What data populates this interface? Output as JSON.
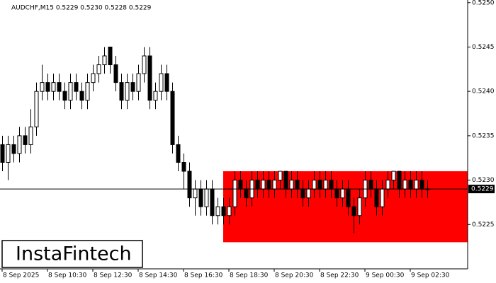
{
  "chart_data": {
    "type": "candlestick",
    "title": "AUDCHF,M15  0.5229 0.5230 0.5228 0.5229",
    "categories": [
      "8 Sep 2025",
      null,
      null,
      null,
      null,
      null,
      null,
      null,
      "8 Sep 10:30",
      null,
      null,
      null,
      null,
      null,
      null,
      null,
      "8 Sep 12:30",
      null,
      null,
      null,
      null,
      null,
      null,
      null,
      "8 Sep 14:30",
      null,
      null,
      null,
      null,
      null,
      null,
      null,
      "8 Sep 16:30",
      null,
      null,
      null,
      null,
      null,
      null,
      null,
      "8 Sep 18:30",
      null,
      null,
      null,
      null,
      null,
      null,
      null,
      "8 Sep 20:30",
      null,
      null,
      null,
      null,
      null,
      null,
      null,
      "8 Sep 22:30",
      null,
      null,
      null,
      null,
      null,
      null,
      null,
      "9 Sep 00:30",
      null,
      null,
      null,
      null,
      null,
      null,
      null,
      "9 Sep 02:30",
      null,
      null,
      null
    ],
    "open": [
      0.5234,
      0.5232,
      0.5234,
      0.5233,
      0.5235,
      0.5234,
      0.5236,
      0.524,
      0.5241,
      0.524,
      0.5241,
      0.524,
      0.5239,
      0.5241,
      0.524,
      0.5239,
      0.5241,
      0.5242,
      0.5243,
      0.5245,
      0.5243,
      0.5241,
      0.5239,
      0.5241,
      0.524,
      0.5242,
      0.5244,
      0.5239,
      0.524,
      0.5242,
      0.524,
      0.5234,
      0.5232,
      0.5231,
      0.5228,
      0.5229,
      0.5227,
      0.5229,
      0.5226,
      0.5227,
      0.5226,
      0.5227,
      0.523,
      0.5229,
      0.5228,
      0.523,
      0.5229,
      0.523,
      0.5229,
      0.523,
      0.5231,
      0.5229,
      0.523,
      0.5229,
      0.5228,
      0.5229,
      0.523,
      0.5229,
      0.523,
      0.5229,
      0.5228,
      0.5229,
      0.5227,
      0.5226,
      0.5228,
      0.523,
      0.5229,
      0.5227,
      0.5229,
      0.523,
      0.5231,
      0.5229,
      0.523,
      0.5229,
      0.523,
      0.5229
    ],
    "high": [
      0.5235,
      0.5235,
      0.5235,
      0.5236,
      0.5236,
      0.5238,
      0.5241,
      0.5243,
      0.5242,
      0.5242,
      0.5242,
      0.5241,
      0.5242,
      0.5242,
      0.5241,
      0.5242,
      0.5243,
      0.5244,
      0.5245,
      0.5245,
      0.5244,
      0.5242,
      0.5242,
      0.5242,
      0.5243,
      0.5245,
      0.5245,
      0.5241,
      0.5243,
      0.5243,
      0.5241,
      0.5235,
      0.5233,
      0.5232,
      0.523,
      0.523,
      0.523,
      0.523,
      0.5228,
      0.5228,
      0.5228,
      0.5231,
      0.5231,
      0.523,
      0.5231,
      0.5231,
      0.5231,
      0.5231,
      0.5231,
      0.5231,
      0.5231,
      0.5231,
      0.5231,
      0.523,
      0.523,
      0.5231,
      0.5231,
      0.5231,
      0.5231,
      0.523,
      0.523,
      0.523,
      0.5228,
      0.5229,
      0.5231,
      0.5231,
      0.523,
      0.523,
      0.5231,
      0.5231,
      0.5231,
      0.5231,
      0.5231,
      0.5231,
      0.5231,
      0.523
    ],
    "low": [
      0.5231,
      0.523,
      0.5232,
      0.5232,
      0.5233,
      0.5233,
      0.5235,
      0.5239,
      0.5239,
      0.5239,
      0.5239,
      0.5238,
      0.5238,
      0.5239,
      0.5238,
      0.5238,
      0.524,
      0.5241,
      0.5242,
      0.5242,
      0.524,
      0.5238,
      0.5238,
      0.5239,
      0.5239,
      0.5241,
      0.5238,
      0.5238,
      0.5239,
      0.5239,
      0.5233,
      0.5231,
      0.5229,
      0.5227,
      0.5226,
      0.5226,
      0.5226,
      0.5225,
      0.5225,
      0.5225,
      0.5225,
      0.5226,
      0.5228,
      0.5227,
      0.5227,
      0.5228,
      0.5228,
      0.5228,
      0.5228,
      0.5229,
      0.5228,
      0.5228,
      0.5228,
      0.5227,
      0.5227,
      0.5228,
      0.5228,
      0.5228,
      0.5228,
      0.5227,
      0.5227,
      0.5226,
      0.5224,
      0.5225,
      0.5227,
      0.5228,
      0.5226,
      0.5226,
      0.5228,
      0.5229,
      0.5228,
      0.5228,
      0.5228,
      0.5228,
      0.5228,
      0.5228
    ],
    "close": [
      0.5232,
      0.5234,
      0.5233,
      0.5235,
      0.5234,
      0.5236,
      0.524,
      0.5241,
      0.524,
      0.5241,
      0.524,
      0.5239,
      0.5241,
      0.524,
      0.5239,
      0.5241,
      0.5242,
      0.5243,
      0.5244,
      0.5243,
      0.5241,
      0.5239,
      0.5241,
      0.524,
      0.5242,
      0.5244,
      0.5239,
      0.524,
      0.5242,
      0.524,
      0.5234,
      0.5232,
      0.5231,
      0.5228,
      0.5229,
      0.5227,
      0.5229,
      0.5226,
      0.5227,
      0.5226,
      0.5227,
      0.523,
      0.5229,
      0.5228,
      0.523,
      0.5229,
      0.523,
      0.5229,
      0.523,
      0.5231,
      0.5229,
      0.523,
      0.5229,
      0.5228,
      0.5229,
      0.523,
      0.5229,
      0.523,
      0.5229,
      0.5228,
      0.5229,
      0.5227,
      0.5226,
      0.5228,
      0.523,
      0.5229,
      0.5227,
      0.5229,
      0.523,
      0.5231,
      0.5229,
      0.523,
      0.5229,
      0.523,
      0.5229,
      0.5229
    ],
    "ylim": [
      0.522,
      0.52503
    ],
    "yticks": [
      0.5225,
      {
        "value": 0.523,
        "label": "0.5230"
      },
      0.5235,
      {
        "value": 0.524,
        "label": "0.5240"
      },
      0.5245,
      {
        "value": 0.525,
        "label": "0.5250"
      }
    ],
    "current_price": 0.5229,
    "zone": {
      "start": 39,
      "top": 0.5231,
      "bottom": 0.5223,
      "color": "#ff0000"
    },
    "logo": "InstaFintech"
  }
}
